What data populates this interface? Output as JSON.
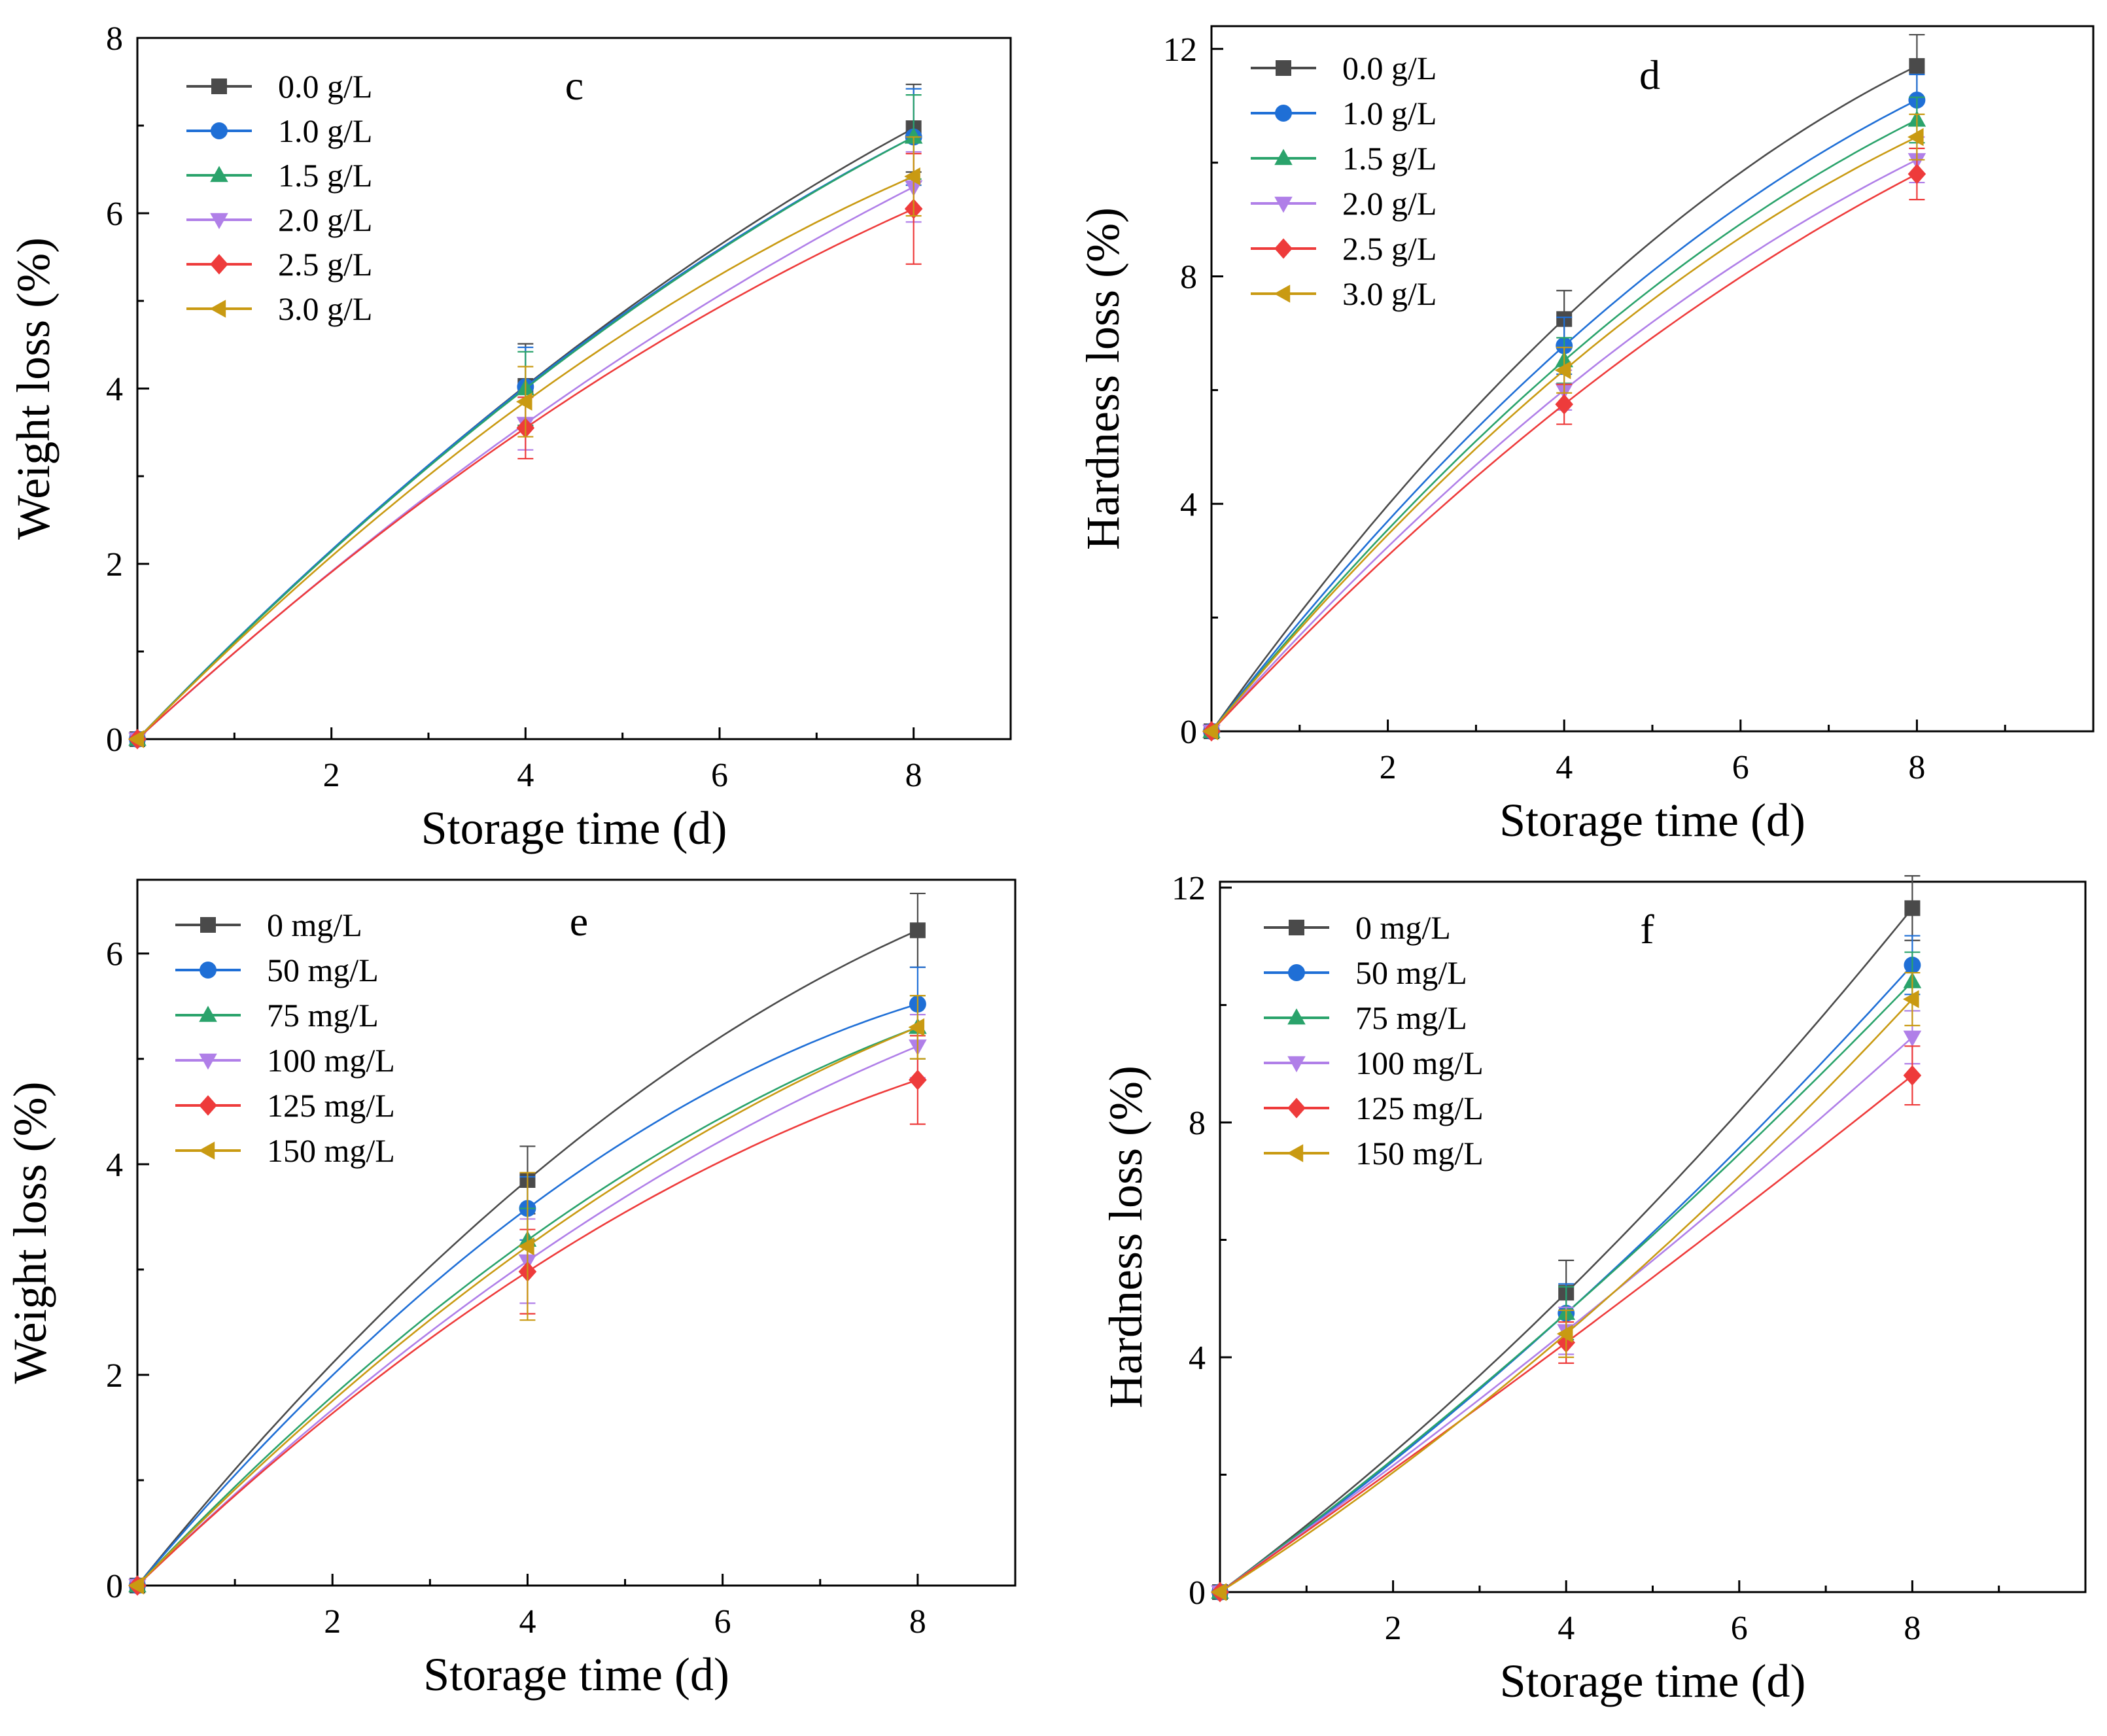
{
  "colors": {
    "0": "#4a4a4a",
    "1": "#1f6fd6",
    "2": "#2aa36b",
    "3": "#b07fe8",
    "4": "#ee3b3b",
    "5": "#c99a12"
  },
  "chart_data": [
    {
      "type": "line",
      "panel_label": "c",
      "xlabel": "Storage time (d)",
      "ylabel": "Weight loss (%)",
      "xlim": [
        0,
        9
      ],
      "ylim": [
        0,
        8
      ],
      "xticks": [
        2,
        4,
        6,
        8
      ],
      "yticks": [
        0,
        2,
        4,
        6,
        8
      ],
      "x": [
        0,
        4,
        8
      ],
      "series": [
        {
          "name": "0.0 g/L",
          "marker": "square",
          "values": [
            0,
            4.03,
            6.97
          ],
          "errors": [
            0,
            0.48,
            0.5
          ]
        },
        {
          "name": "1.0 g/L",
          "marker": "circle",
          "values": [
            0,
            4.02,
            6.87
          ],
          "errors": [
            0,
            0.45,
            0.55
          ]
        },
        {
          "name": "1.5 g/L",
          "marker": "triangle-up",
          "values": [
            0,
            4.0,
            6.87
          ],
          "errors": [
            0,
            0.42,
            0.48
          ]
        },
        {
          "name": "2.0 g/L",
          "marker": "triangle-down",
          "values": [
            0,
            3.6,
            6.3
          ],
          "errors": [
            0,
            0.3,
            0.4
          ]
        },
        {
          "name": "2.5 g/L",
          "marker": "diamond",
          "values": [
            0,
            3.55,
            6.05
          ],
          "errors": [
            0,
            0.35,
            0.63
          ]
        },
        {
          "name": "3.0 g/L",
          "marker": "triangle-left",
          "values": [
            0,
            3.85,
            6.42
          ],
          "errors": [
            0,
            0.4,
            0.45
          ]
        }
      ]
    },
    {
      "type": "line",
      "panel_label": "d",
      "xlabel": "Storage time (d)",
      "ylabel": "Hardness loss (%)",
      "xlim": [
        0,
        10
      ],
      "ylim": [
        0,
        12.4
      ],
      "xticks": [
        2,
        4,
        6,
        8
      ],
      "yticks": [
        0,
        4,
        8,
        12
      ],
      "x": [
        0,
        4,
        8
      ],
      "series": [
        {
          "name": "0.0 g/L",
          "marker": "square",
          "values": [
            0,
            7.25,
            11.7
          ],
          "errors": [
            0,
            0.5,
            0.55
          ]
        },
        {
          "name": "1.0 g/L",
          "marker": "circle",
          "values": [
            0,
            6.78,
            11.1
          ],
          "errors": [
            0,
            0.5,
            0.45
          ]
        },
        {
          "name": "1.5 g/L",
          "marker": "triangle-up",
          "values": [
            0,
            6.52,
            10.75
          ],
          "errors": [
            0,
            0.4,
            0.4
          ]
        },
        {
          "name": "2.0 g/L",
          "marker": "triangle-down",
          "values": [
            0,
            6.0,
            10.05
          ],
          "errors": [
            0,
            0.35,
            0.4
          ]
        },
        {
          "name": "2.5 g/L",
          "marker": "diamond",
          "values": [
            0,
            5.75,
            9.8
          ],
          "errors": [
            0,
            0.35,
            0.45
          ]
        },
        {
          "name": "3.0 g/L",
          "marker": "triangle-left",
          "values": [
            0,
            6.35,
            10.45
          ],
          "errors": [
            0,
            0.4,
            0.4
          ]
        }
      ]
    },
    {
      "type": "line",
      "panel_label": "e",
      "xlabel": "Storage time (d)",
      "ylabel": "Weight loss (%)",
      "xlim": [
        0,
        9
      ],
      "ylim": [
        0,
        6.7
      ],
      "xticks": [
        2,
        4,
        6,
        8
      ],
      "yticks": [
        0,
        2,
        4,
        6
      ],
      "x": [
        0,
        4,
        8
      ],
      "series": [
        {
          "name": "0 mg/L",
          "marker": "square",
          "values": [
            0,
            3.85,
            6.22
          ],
          "errors": [
            0,
            0.32,
            0.35
          ]
        },
        {
          "name": "50 mg/L",
          "marker": "circle",
          "values": [
            0,
            3.58,
            5.52
          ],
          "errors": [
            0,
            0.3,
            0.35
          ]
        },
        {
          "name": "75 mg/L",
          "marker": "triangle-up",
          "values": [
            0,
            3.28,
            5.3
          ],
          "errors": [
            0,
            0.3,
            0.3
          ]
        },
        {
          "name": "100 mg/L",
          "marker": "triangle-down",
          "values": [
            0,
            3.08,
            5.12
          ],
          "errors": [
            0,
            0.4,
            0.3
          ]
        },
        {
          "name": "125 mg/L",
          "marker": "diamond",
          "values": [
            0,
            2.98,
            4.8
          ],
          "errors": [
            0,
            0.4,
            0.42
          ]
        },
        {
          "name": "150 mg/L",
          "marker": "triangle-left",
          "values": [
            0,
            3.22,
            5.3
          ],
          "errors": [
            0,
            0.7,
            0.3
          ]
        }
      ]
    },
    {
      "type": "line",
      "panel_label": "f",
      "xlabel": "Storage time (d)",
      "ylabel": "Hardness loss (%)",
      "xlim": [
        0,
        10
      ],
      "ylim": [
        0,
        12.1
      ],
      "xticks": [
        2,
        4,
        6,
        8
      ],
      "yticks": [
        0,
        4,
        8,
        12
      ],
      "x": [
        0,
        4,
        8
      ],
      "series": [
        {
          "name": "0 mg/L",
          "marker": "square",
          "values": [
            0,
            5.1,
            11.65
          ],
          "errors": [
            0,
            0.55,
            0.55
          ]
        },
        {
          "name": "50 mg/L",
          "marker": "circle",
          "values": [
            0,
            4.75,
            10.68
          ],
          "errors": [
            0,
            0.5,
            0.5
          ]
        },
        {
          "name": "75 mg/L",
          "marker": "triangle-up",
          "values": [
            0,
            4.75,
            10.4
          ],
          "errors": [
            0,
            0.45,
            0.5
          ]
        },
        {
          "name": "100 mg/L",
          "marker": "triangle-down",
          "values": [
            0,
            4.45,
            9.45
          ],
          "errors": [
            0,
            0.4,
            0.45
          ]
        },
        {
          "name": "125 mg/L",
          "marker": "diamond",
          "values": [
            0,
            4.25,
            8.8
          ],
          "errors": [
            0,
            0.35,
            0.5
          ]
        },
        {
          "name": "150 mg/L",
          "marker": "triangle-left",
          "values": [
            0,
            4.4,
            10.1
          ],
          "errors": [
            0,
            0.4,
            0.45
          ]
        }
      ]
    }
  ]
}
